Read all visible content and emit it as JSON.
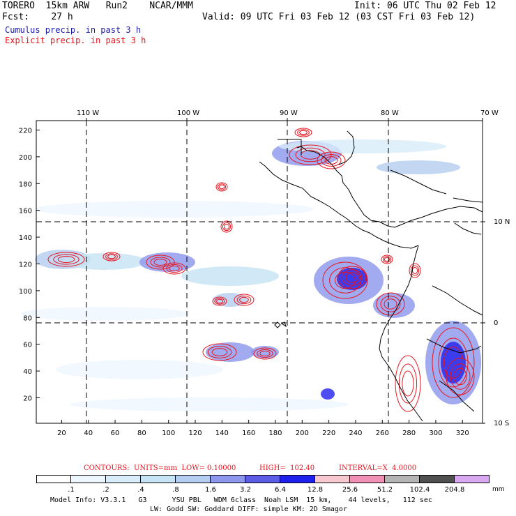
{
  "header": {
    "line1_left": "TORERO  15km ARW   Run2    NCAR/MMM",
    "line1_right": "Init: 06 UTC Thu 02 Feb 12",
    "line2_left": "Fcst:    27 h",
    "line2_right": "Valid: 09 UTC Fri 03 Feb 12 (03 CST Fri 03 Feb 12)",
    "legend_cumulus": "Cumulus precip. in past 3 h",
    "legend_explicit": "Explicit precip. in past 3 h"
  },
  "map": {
    "top_lon_labels": [
      "110 W",
      "100 W",
      "90 W",
      "80 W",
      "70 W"
    ],
    "right_lat_labels": [
      "10 N",
      "0",
      "10 S"
    ],
    "left_y_ticks": [
      "220",
      "200",
      "180",
      "160",
      "140",
      "120",
      "100",
      "80",
      "60",
      "40",
      "20"
    ],
    "bottom_x_ticks": [
      "20",
      "40",
      "60",
      "80",
      "100",
      "120",
      "140",
      "160",
      "180",
      "200",
      "220",
      "240",
      "260",
      "280",
      "300",
      "320"
    ],
    "x_range": [
      1,
      335
    ],
    "y_range": [
      1,
      227
    ]
  },
  "contours_line": {
    "label": "CONTOURS:  UNITS=mm  LOW= 0.10000",
    "high": "HIGH=  102.40",
    "interval": "INTERVAL=X  4.0000"
  },
  "colorbar": {
    "labels": [
      ".1",
      ".2",
      ".4",
      ".8",
      "1.6",
      "3.2",
      "6.4",
      "12.8",
      "25.6",
      "51.2",
      "102.4",
      "204.8"
    ],
    "unit": "mm",
    "colors": [
      "#ffffff",
      "#eef6ff",
      "#d8ecfa",
      "#c6e4f4",
      "#b4cdf0",
      "#8c96ec",
      "#5c5ce6",
      "#2020ee",
      "#f8c8d0",
      "#f090b4",
      "#b4b4b4",
      "#505050",
      "#d8a8f0"
    ]
  },
  "footer": {
    "line1": "Model Info: V3.3.1   G3      YSU PBL   WDM 6class  Noah LSM  15 km,    44 levels,   112 sec",
    "line2": "LW: Godd SW: Goddard DIFF: simple KM: 2D Smagor"
  }
}
